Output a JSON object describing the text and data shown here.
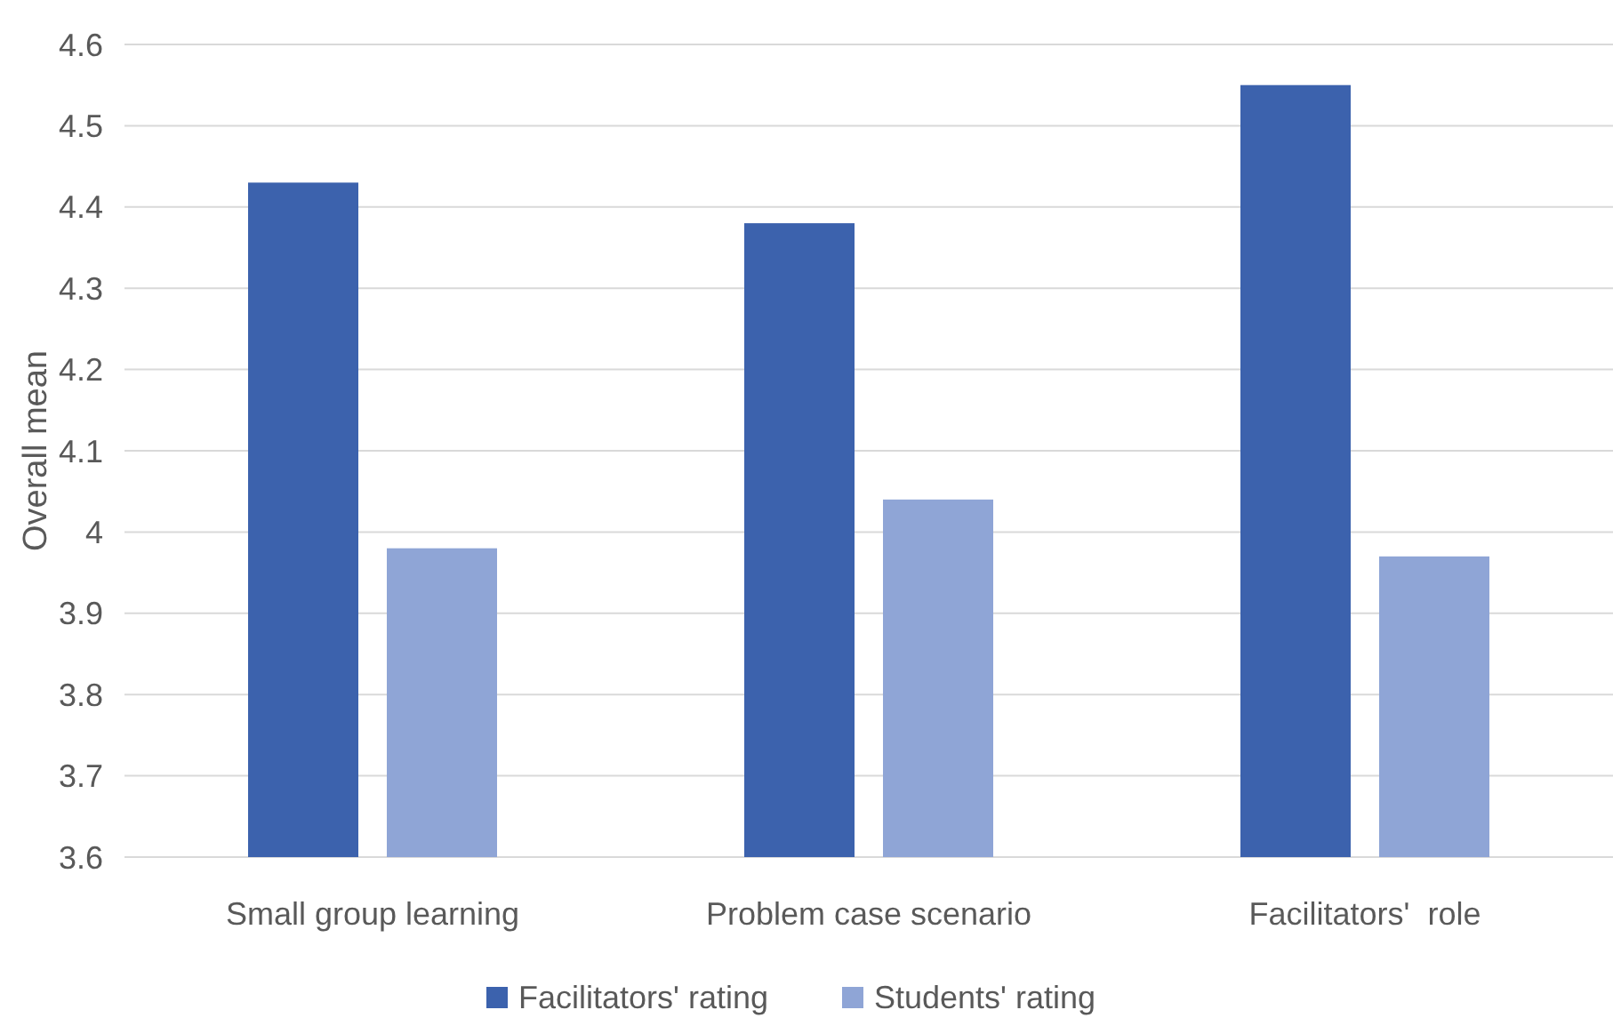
{
  "chart_data": {
    "type": "bar",
    "ylabel": "Overall mean",
    "categories": [
      "Small group learning",
      "Problem case scenario",
      "Facilitators'  role"
    ],
    "series": [
      {
        "name": "Facilitators' rating",
        "color": "#3c62ad",
        "values": [
          4.43,
          4.38,
          4.55
        ]
      },
      {
        "name": "Students' rating",
        "color": "#8fa5d6",
        "values": [
          3.98,
          4.04,
          3.97
        ]
      }
    ],
    "ylim": [
      3.6,
      4.6
    ],
    "yticks": [
      3.6,
      3.7,
      3.8,
      3.9,
      4,
      4.1,
      4.2,
      4.3,
      4.4,
      4.5,
      4.6
    ],
    "grid": "y",
    "legend": "bottom"
  }
}
